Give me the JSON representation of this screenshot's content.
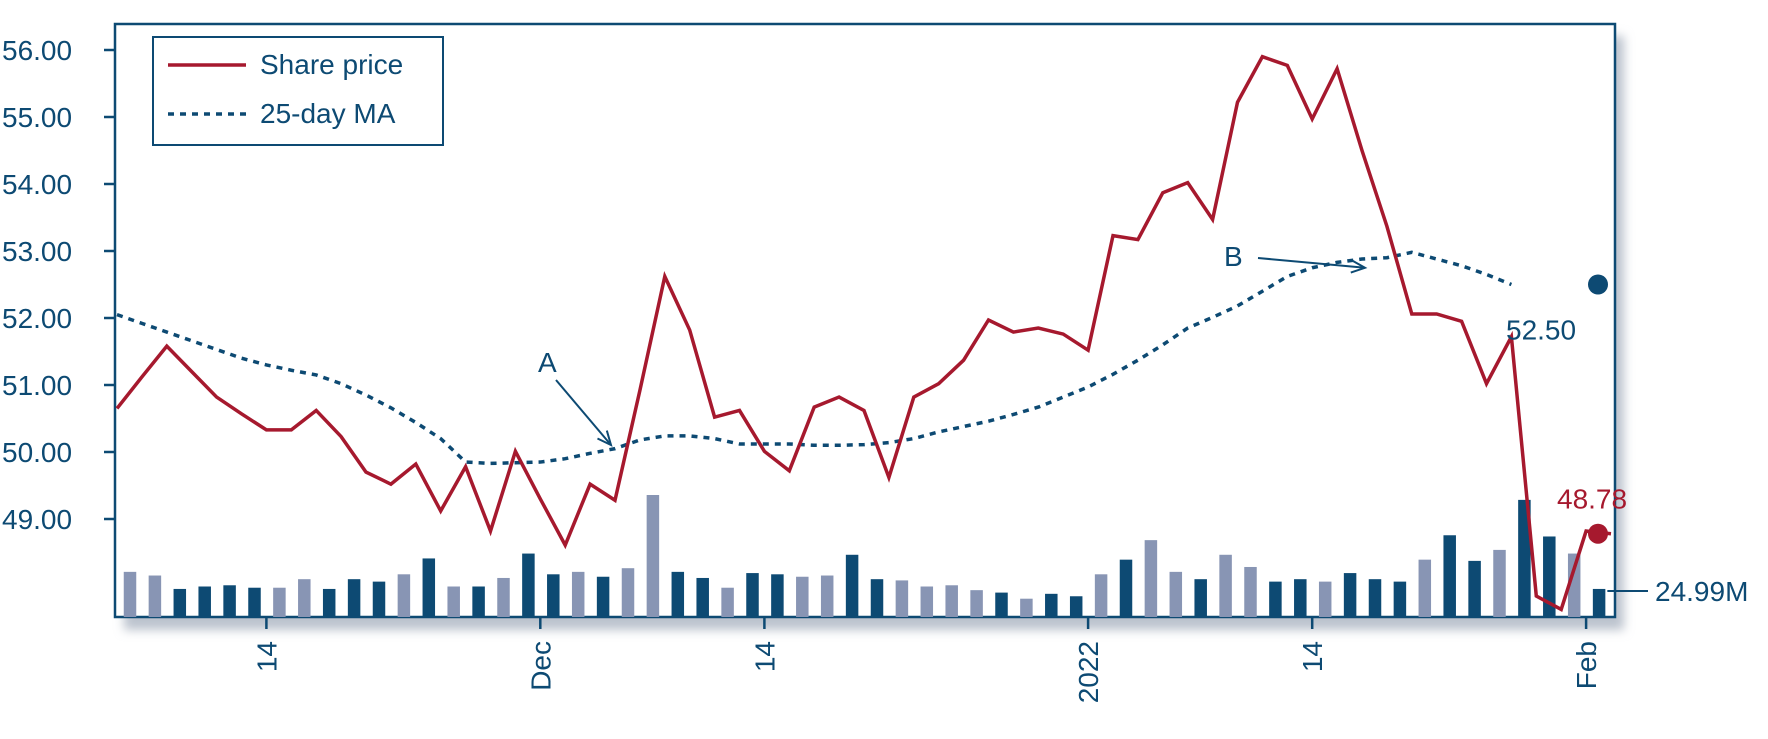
{
  "colors": {
    "price": "#a6192e",
    "ma": "#0d4a73",
    "axis": "#0d4a73",
    "volume_dark": "#0d4a73",
    "volume_light": "#8895b4",
    "shadow": "#bcc3ce"
  },
  "chart_data": {
    "type": "line",
    "title": "",
    "xlabel": "",
    "ylabel": "",
    "ylim": [
      47.4,
      56.4
    ],
    "y_ticks": [
      "56.00",
      "55.00",
      "54.00",
      "53.00",
      "52.00",
      "51.00",
      "50.00",
      "49.00"
    ],
    "x_ticks": [
      {
        "label": "14",
        "index": 6
      },
      {
        "label": "Dec",
        "index": 17
      },
      {
        "label": "14",
        "index": 26
      },
      {
        "label": "2022",
        "index": 39
      },
      {
        "label": "14",
        "index": 48
      },
      {
        "label": "Feb",
        "index": 59
      }
    ],
    "legend": {
      "placement": "top-left",
      "items": [
        {
          "label": "Share price",
          "style": "solid",
          "series": "price"
        },
        {
          "label": "25-day MA",
          "style": "dotted",
          "series": "ma"
        }
      ]
    },
    "grid": false,
    "series": [
      {
        "name": "Share price",
        "values": [
          50.65,
          51.12,
          51.58,
          51.2,
          50.82,
          50.57,
          50.33,
          50.33,
          50.62,
          50.23,
          49.7,
          49.52,
          49.82,
          49.12,
          49.78,
          48.82,
          50.01,
          49.3,
          48.61,
          49.52,
          49.28,
          50.92,
          52.62,
          51.82,
          50.52,
          50.62,
          50.01,
          49.72,
          50.67,
          50.82,
          50.62,
          49.62,
          50.82,
          51.02,
          51.37,
          51.97,
          51.79,
          51.85,
          51.76,
          51.52,
          53.23,
          53.17,
          53.87,
          54.02,
          53.47,
          55.22,
          55.9,
          55.77,
          54.97,
          55.72,
          54.5,
          53.37,
          52.06,
          52.06,
          51.95,
          51.02,
          51.72,
          47.85,
          47.65,
          48.82,
          48.78
        ]
      },
      {
        "name": "25-day MA",
        "values": [
          52.05,
          51.92,
          51.79,
          51.66,
          51.53,
          51.4,
          51.3,
          51.22,
          51.15,
          51.02,
          50.85,
          50.66,
          50.44,
          50.2,
          49.85,
          49.83,
          49.84,
          49.85,
          49.9,
          49.98,
          50.05,
          50.18,
          50.24,
          50.24,
          50.2,
          50.12,
          50.12,
          50.12,
          50.1,
          50.1,
          50.11,
          50.14,
          50.2,
          50.3,
          50.38,
          50.46,
          50.56,
          50.67,
          50.82,
          50.97,
          51.16,
          51.37,
          51.6,
          51.85,
          52.01,
          52.18,
          52.4,
          52.62,
          52.75,
          52.83,
          52.88,
          52.9,
          52.98,
          52.88,
          52.78,
          52.65,
          52.5
        ]
      }
    ],
    "volume": {
      "values": [
        0.37,
        0.34,
        0.23,
        0.25,
        0.26,
        0.24,
        0.24,
        0.31,
        0.23,
        0.31,
        0.29,
        0.35,
        0.48,
        0.25,
        0.25,
        0.32,
        0.52,
        0.35,
        0.37,
        0.33,
        0.4,
        1.0,
        0.37,
        0.32,
        0.24,
        0.36,
        0.35,
        0.33,
        0.34,
        0.51,
        0.31,
        0.3,
        0.25,
        0.26,
        0.22,
        0.2,
        0.15,
        0.19,
        0.17,
        0.35,
        0.47,
        0.63,
        0.37,
        0.31,
        0.51,
        0.41,
        0.29,
        0.31,
        0.29,
        0.36,
        0.31,
        0.29,
        0.47,
        0.67,
        0.46,
        0.55,
        0.96,
        0.66,
        0.52,
        0.23
      ],
      "shading": [
        "light",
        "light",
        "dark",
        "dark",
        "dark",
        "dark",
        "light",
        "light",
        "dark",
        "dark",
        "dark",
        "light",
        "dark",
        "light",
        "dark",
        "light",
        "dark",
        "dark",
        "light",
        "dark",
        "light",
        "light",
        "dark",
        "dark",
        "light",
        "dark",
        "dark",
        "light",
        "light",
        "dark",
        "dark",
        "light",
        "light",
        "light",
        "light",
        "dark",
        "light",
        "dark",
        "dark",
        "light",
        "dark",
        "light",
        "light",
        "dark",
        "light",
        "light",
        "dark",
        "dark",
        "light",
        "dark",
        "dark",
        "dark",
        "light",
        "dark",
        "dark",
        "light",
        "dark",
        "dark",
        "light",
        "dark"
      ],
      "last_label": "24.99M"
    },
    "annotations": [
      {
        "name": "A",
        "label": "A"
      },
      {
        "name": "B",
        "label": "B"
      }
    ],
    "end_labels": {
      "ma": "52.50",
      "price": "48.78"
    }
  }
}
